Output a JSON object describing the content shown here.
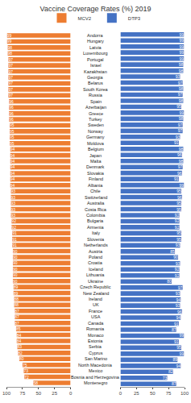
{
  "chart_data": {
    "type": "bar",
    "orientation": "horizontal",
    "title": "Vaccine Coverage Rates (%) 2019",
    "categories": [
      "Andorra",
      "Hungary",
      "Latvia",
      "Luxembourg",
      "Portugal",
      "Israel",
      "Kazakhstan",
      "Georgia",
      "Belarus",
      "South Korea",
      "Russia",
      "Spain",
      "Azerbaijan",
      "Greece",
      "Turkey",
      "Sweden",
      "Norway",
      "Germany",
      "Moldova",
      "Belgium",
      "Japan",
      "Malta",
      "Denmark",
      "Slovakia",
      "Finland",
      "Albania",
      "Chile",
      "Switzerland",
      "Australia",
      "Costa Rica",
      "Colombia",
      "Bulgaria",
      "Armenia",
      "Italy",
      "Slovenia",
      "Netherlands",
      "Austria",
      "Poland",
      "Croatia",
      "Iceland",
      "Lithuania",
      "Ukraine",
      "Czech Republic",
      "New Zealand",
      "Ireland",
      "UK",
      "France",
      "USA",
      "Canada",
      "Romania",
      "Monaco",
      "Estonia",
      "Serbia",
      "Cyprus",
      "San Marino",
      "North Macedonia",
      "Mexico",
      "Bosnia and Herzegovina",
      "Montenegro"
    ],
    "series": [
      {
        "name": "MCV2",
        "color": "#ED7D31",
        "values": [
          99,
          99,
          98,
          98,
          97,
          97,
          97,
          97,
          97,
          97,
          97,
          96,
          96,
          96,
          96,
          95,
          95,
          95,
          95,
          94,
          94,
          94,
          94,
          94,
          94,
          94,
          93,
          93,
          93,
          93,
          93,
          92,
          92,
          91,
          91,
          91,
          90,
          90,
          90,
          90,
          90,
          90,
          89,
          89,
          88,
          88,
          87,
          87,
          87,
          85,
          84,
          84,
          83,
          82,
          80,
          75,
          73,
          72,
          58
        ]
      },
      {
        "name": "DTP3",
        "color": "#4472C4",
        "values": [
          99,
          99,
          99,
          99,
          99,
          98,
          98,
          93,
          97,
          98,
          97,
          98,
          95,
          99,
          98,
          97,
          97,
          93,
          91,
          98,
          96,
          98,
          97,
          96,
          91,
          99,
          95,
          96,
          95,
          95,
          92,
          92,
          92,
          95,
          95,
          93,
          85,
          90,
          93,
          92,
          92,
          80,
          97,
          93,
          94,
          93,
          96,
          94,
          91,
          87,
          99,
          91,
          95,
          99,
          89,
          94,
          82,
          73,
          87
        ]
      }
    ],
    "xlim": [
      0,
      100
    ],
    "xticks": [
      0,
      25,
      50,
      75,
      100
    ],
    "grid": false,
    "legend": "top",
    "data_labels": true
  }
}
